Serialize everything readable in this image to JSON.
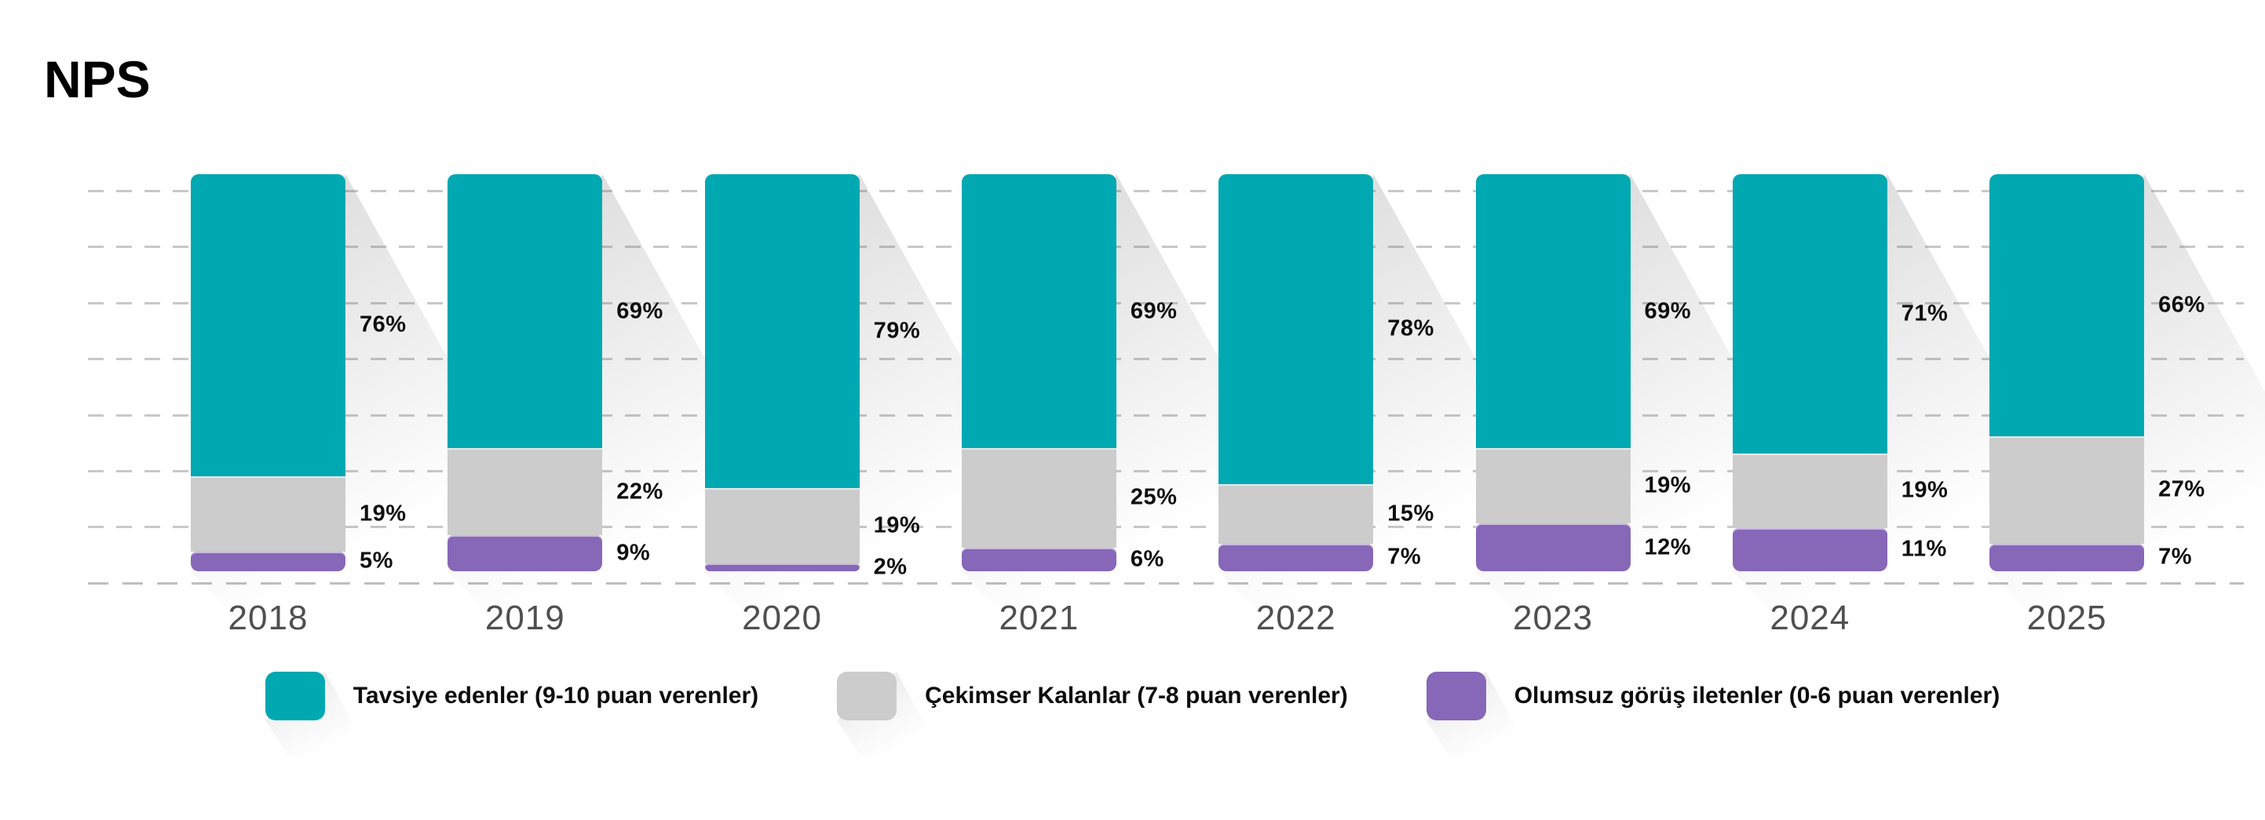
{
  "title": "NPS",
  "colors": {
    "background": "#ffffff",
    "promoters": "#00a8b2",
    "passives": "#cccccc",
    "detractors": "#8767b8",
    "gridline": "#c8c8c8",
    "axis_line": "#bfbfbf",
    "year_label": "#4f4f4f",
    "value_label": "#0e0e0e",
    "title_text": "#000000"
  },
  "legend": [
    {
      "key": "promoters",
      "label": "Tavsiye edenler (9-10 puan verenler)",
      "color": "#00a8b2"
    },
    {
      "key": "passives",
      "label": "Çekimser Kalanlar (7-8 puan verenler)",
      "color": "#cccccc"
    },
    {
      "key": "detractors",
      "label": "Olumsuz görüş iletenler (0-6 puan verenler)",
      "color": "#8767b8"
    }
  ],
  "chart_data": {
    "type": "bar",
    "variant": "stacked-100-percent-column",
    "title": "NPS",
    "categories": [
      "2018",
      "2019",
      "2020",
      "2021",
      "2022",
      "2023",
      "2024",
      "2025"
    ],
    "series": [
      {
        "key": "promoters",
        "name": "Tavsiye edenler (9-10 puan verenler)",
        "color": "#00a8b2",
        "values": [
          76,
          69,
          79,
          69,
          78,
          69,
          71,
          66
        ]
      },
      {
        "key": "passives",
        "name": "Çekimser Kalanlar (7-8 puan verenler)",
        "color": "#cccccc",
        "values": [
          19,
          22,
          19,
          25,
          15,
          19,
          19,
          27
        ]
      },
      {
        "key": "detractors",
        "name": "Olumsuz görüş iletenler (0-6 puan verenler)",
        "color": "#8767b8",
        "values": [
          5,
          9,
          2,
          6,
          7,
          12,
          11,
          7
        ]
      }
    ],
    "value_suffix": "%",
    "ylim": [
      0,
      100
    ],
    "grid": "horizontal-dashed",
    "legend_position": "bottom"
  }
}
